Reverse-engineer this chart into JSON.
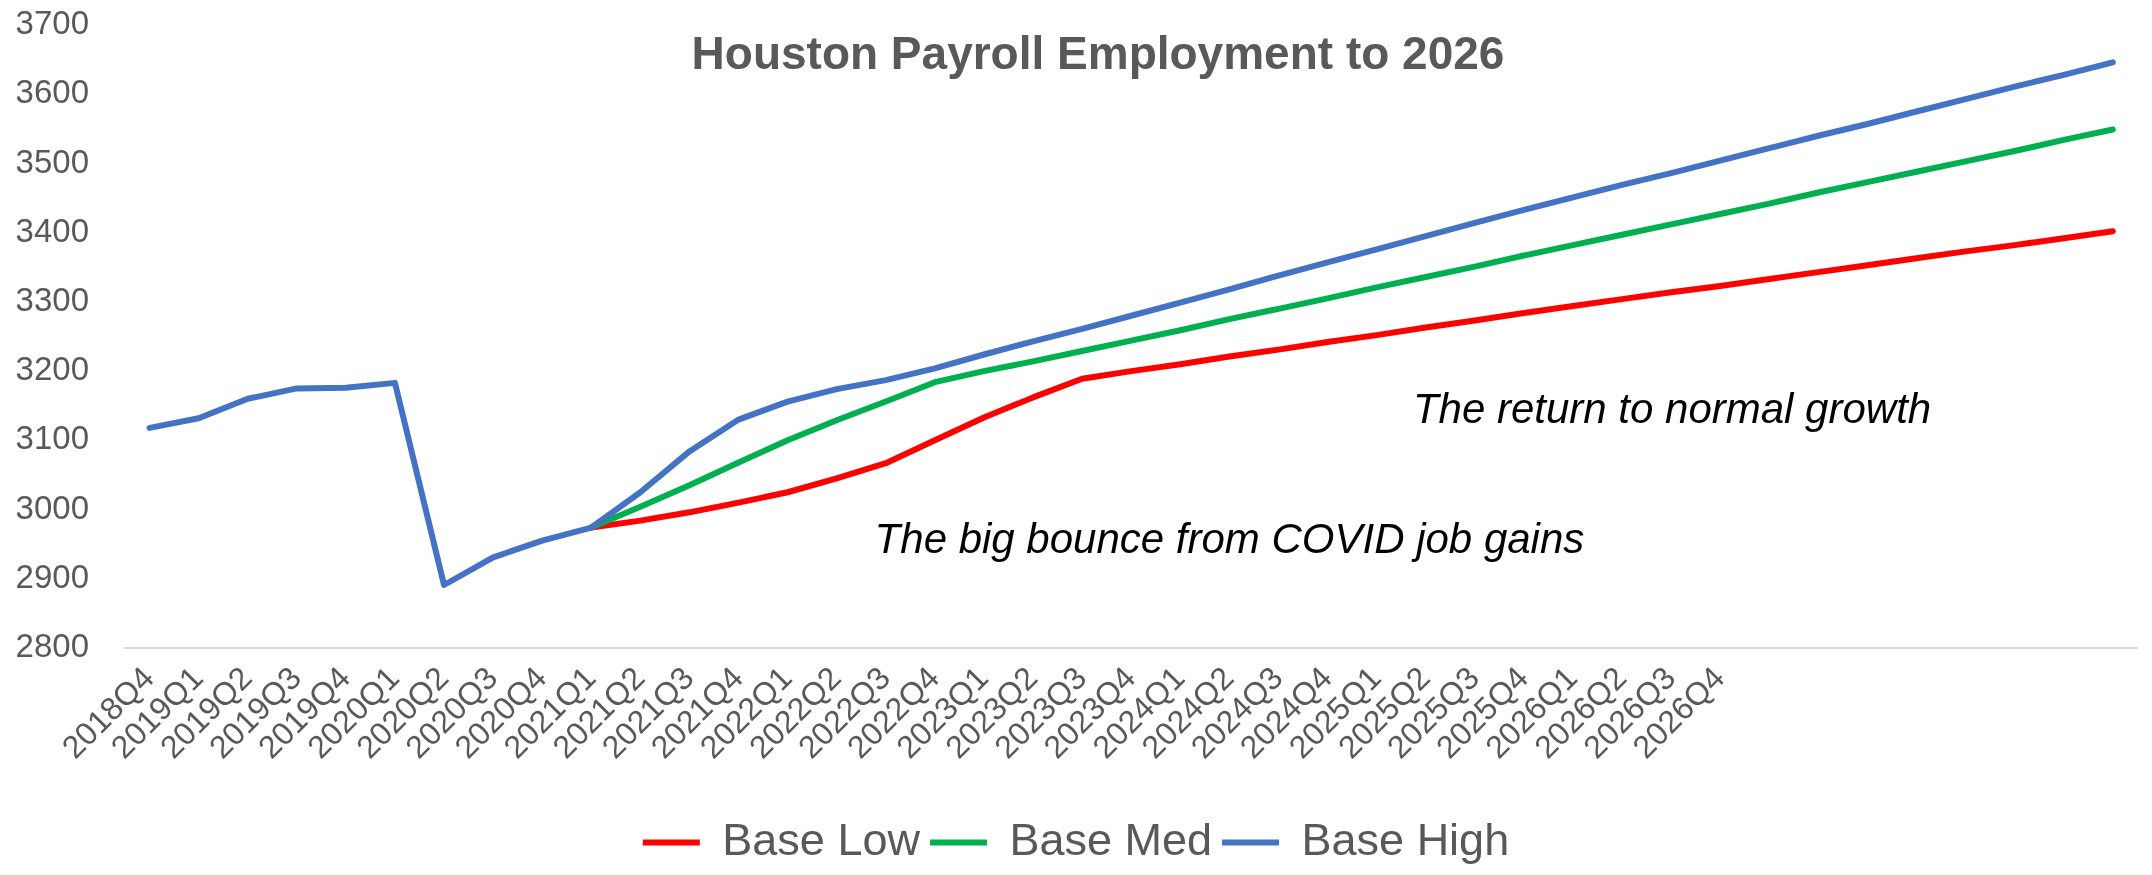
{
  "chart_data": {
    "type": "line",
    "title": "Houston Payroll Employment to 2026",
    "categories": [
      "2018Q4",
      "2019Q1",
      "2019Q2",
      "2019Q3",
      "2019Q4",
      "2020Q1",
      "2020Q2",
      "2020Q3",
      "2020Q4",
      "2021Q1",
      "2021Q2",
      "2021Q3",
      "2021Q4",
      "2022Q1",
      "2022Q2",
      "2022Q3",
      "2022Q4",
      "2023Q1",
      "2023Q2",
      "2023Q3",
      "2023Q4",
      "2024Q1",
      "2024Q2",
      "2024Q3",
      "2024Q4",
      "2025Q1",
      "2025Q2",
      "2025Q3",
      "2025Q4",
      "2026Q1",
      "2026Q2",
      "2026Q3",
      "2026Q4",
      null,
      null,
      null,
      null,
      null,
      null,
      null,
      null
    ],
    "series": [
      {
        "name": "Base Low",
        "color": "#ff0000",
        "values": [
          null,
          null,
          null,
          null,
          null,
          null,
          null,
          null,
          null,
          2974,
          2984,
          2996,
          3010,
          3025,
          3045,
          3067,
          3100,
          3133,
          3162,
          3189,
          3200,
          3210,
          3221,
          3231,
          3242,
          3252,
          3263,
          3273,
          3284,
          3294,
          3304,
          3314,
          3323,
          3333,
          3343,
          3353,
          3363,
          3373,
          3382,
          3392,
          3402
        ]
      },
      {
        "name": "Base Med",
        "color": "#00b050",
        "values": [
          null,
          null,
          null,
          null,
          null,
          null,
          null,
          null,
          null,
          2974,
          3004,
          3035,
          3068,
          3100,
          3129,
          3156,
          3184,
          3200,
          3214,
          3229,
          3244,
          3259,
          3275,
          3290,
          3305,
          3321,
          3336,
          3351,
          3367,
          3382,
          3397,
          3412,
          3427,
          3442,
          3458,
          3473,
          3488,
          3503,
          3518,
          3534,
          3549
        ]
      },
      {
        "name": "Base High",
        "color": "#4472c4",
        "values": [
          3118,
          3132,
          3160,
          3175,
          3176,
          3183,
          2891,
          2931,
          2955,
          2974,
          3025,
          3084,
          3130,
          3156,
          3174,
          3187,
          3204,
          3224,
          3243,
          3261,
          3280,
          3299,
          3318,
          3338,
          3357,
          3376,
          3395,
          3414,
          3433,
          3451,
          3469,
          3486,
          3504,
          3522,
          3540,
          3557,
          3575,
          3593,
          3611,
          3628,
          3646
        ]
      }
    ],
    "ylim": [
      2800,
      3700
    ],
    "yticks": [
      2800,
      2900,
      3000,
      3100,
      3200,
      3300,
      3400,
      3500,
      3600,
      3700
    ],
    "legend": "bottom",
    "annotations": [
      "The big bounce from COVID job gains",
      "The return to normal growth"
    ]
  }
}
